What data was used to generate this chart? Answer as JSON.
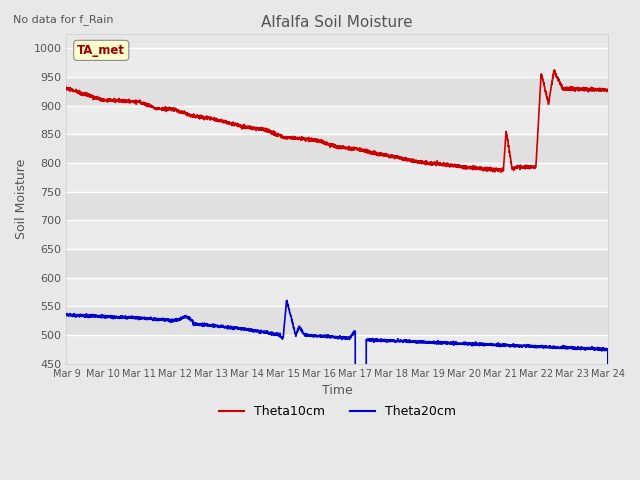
{
  "title": "Alfalfa Soil Moisture",
  "subtitle": "No data for f_Rain",
  "xlabel": "Time",
  "ylabel": "Soil Moisture",
  "ylim": [
    450,
    1020
  ],
  "yticks": [
    450,
    500,
    550,
    600,
    650,
    700,
    750,
    800,
    850,
    900,
    950,
    1000
  ],
  "xtick_labels": [
    "Mar 9",
    "Mar 10",
    "Mar 11",
    "Mar 12",
    "Mar 13",
    "Mar 14",
    "Mar 15",
    "Mar 16",
    "Mar 17",
    "Mar 18",
    "Mar 19",
    "Mar 20",
    "Mar 21",
    "Mar 22",
    "Mar 23",
    "Mar 24"
  ],
  "legend_labels": [
    "Theta10cm",
    "Theta20cm"
  ],
  "legend_colors": [
    "#cc0000",
    "#0000cc"
  ],
  "annotation_text": "TA_met",
  "annotation_color": "#990000",
  "annotation_bg": "#ffffcc",
  "plot_bg_light": "#f0f0f0",
  "plot_bg_dark": "#e0e0e0",
  "title_color": "#555555",
  "axis_color": "#555555",
  "grid_color": "#ffffff"
}
